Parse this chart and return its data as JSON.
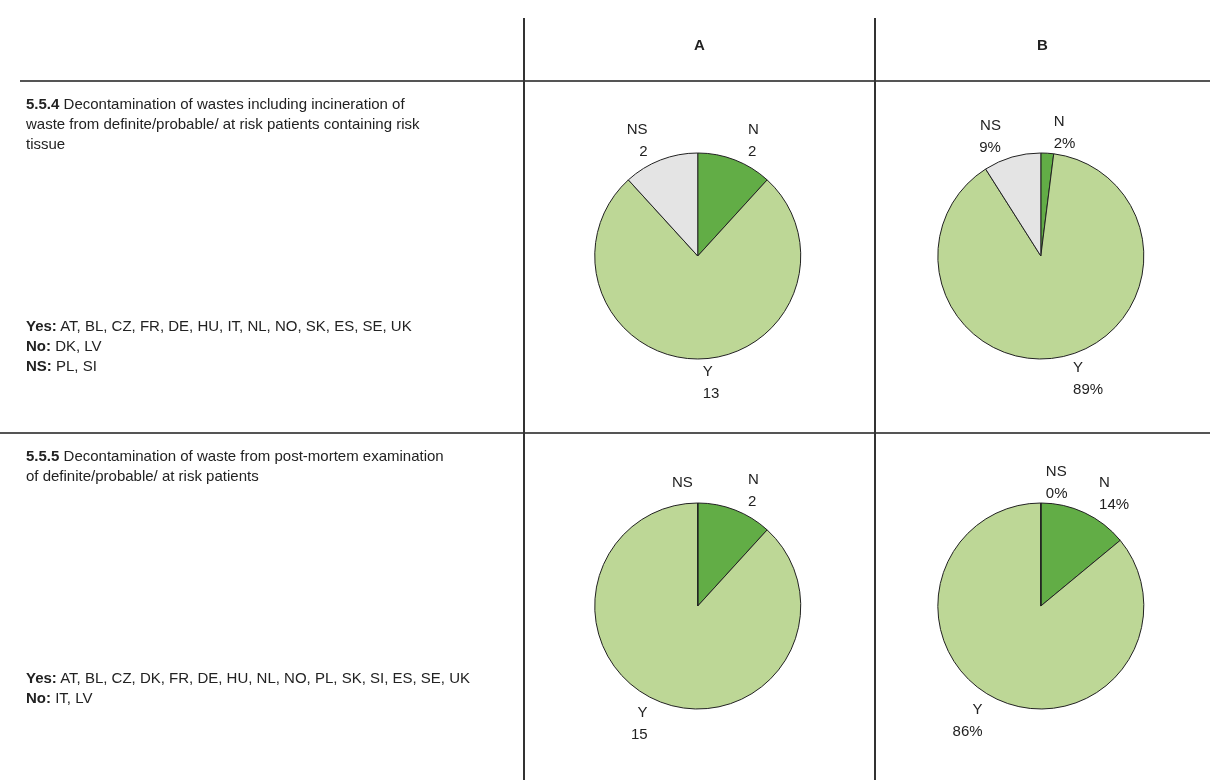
{
  "chart_data": [
    {
      "type": "other",
      "title": "5.5.4 Decontamination of wastes including incineration of waste from definite/probable/ at risk patients containing risk tissue",
      "annotations": [
        "Yes: AT, BL, CZ, FR, DE, HU, IT, NL, NO, SK, ES, SE, UK",
        "No: DK, LV",
        "NS: PL, SI"
      ]
    },
    {
      "type": "pie",
      "title": "A",
      "categories": [
        "N",
        "Y",
        "NS"
      ],
      "values": [
        2,
        13,
        2
      ],
      "colors": [
        "#62ad46",
        "#bdd796",
        "#e4e4e4"
      ],
      "data_labels": true
    },
    {
      "type": "pie",
      "title": "B",
      "categories": [
        "N",
        "Y",
        "NS"
      ],
      "values": [
        2,
        89,
        9
      ],
      "colors": [
        "#62ad46",
        "#bdd796",
        "#e4e4e4"
      ],
      "value_labels": [
        "2%",
        "89%",
        "9%"
      ]
    },
    {
      "type": "other",
      "title": "5.5.5 Decontamination of waste from post-mortem examination of definite/probable/ at risk patients",
      "annotations": [
        "Yes: AT, BL, CZ, DK, FR, DE, HU, NL, NO, PL, SK, SI, ES, SE, UK",
        "No: IT, LV"
      ]
    },
    {
      "type": "pie",
      "categories": [
        "N",
        "Y",
        "NS"
      ],
      "values": [
        2,
        15,
        0
      ],
      "colors": [
        "#62ad46",
        "#bdd796",
        "#e4e4e4"
      ],
      "value_labels": [
        "2",
        "15",
        null
      ]
    },
    {
      "type": "pie",
      "categories": [
        "N",
        "Y",
        "NS"
      ],
      "values": [
        14,
        86,
        0
      ],
      "colors": [
        "#62ad46",
        "#bdd796",
        "#e4e4e4"
      ],
      "value_labels": [
        "14%",
        "86%",
        "0%"
      ]
    }
  ]
}
